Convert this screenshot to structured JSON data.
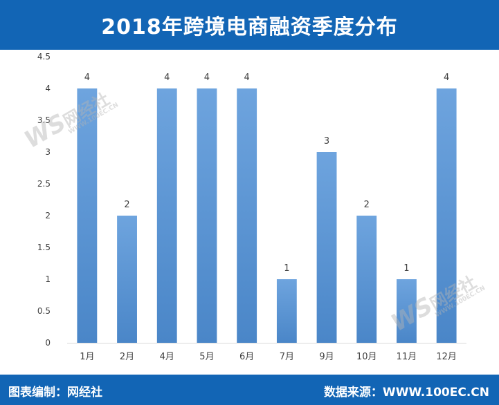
{
  "header": {
    "title": "2018年跨境电商融资季度分布"
  },
  "footer": {
    "left": "图表编制：网经社",
    "right": "数据来源：WWW.100EC.CN"
  },
  "watermark": {
    "logo": "WS",
    "name": "网经社",
    "url": "WWW.100EC.CN",
    "tagline": "网络经济服务平台"
  },
  "colors": {
    "header": "#1265b5",
    "bar": "#6a9fd8",
    "text": "#404040",
    "axis": "#d9d9d9"
  },
  "chart_data": {
    "type": "bar",
    "categories": [
      "1月",
      "2月",
      "4月",
      "5月",
      "6月",
      "7月",
      "9月",
      "10月",
      "11月",
      "12月"
    ],
    "values": [
      4,
      2,
      4,
      4,
      4,
      1,
      3,
      2,
      1,
      4
    ],
    "ylim": [
      0,
      4.5
    ],
    "yticks": [
      "0",
      "0.5",
      "1",
      "1.5",
      "2",
      "2.5",
      "3",
      "3.5",
      "4",
      "4.5"
    ],
    "grid": false,
    "legend": "none"
  }
}
